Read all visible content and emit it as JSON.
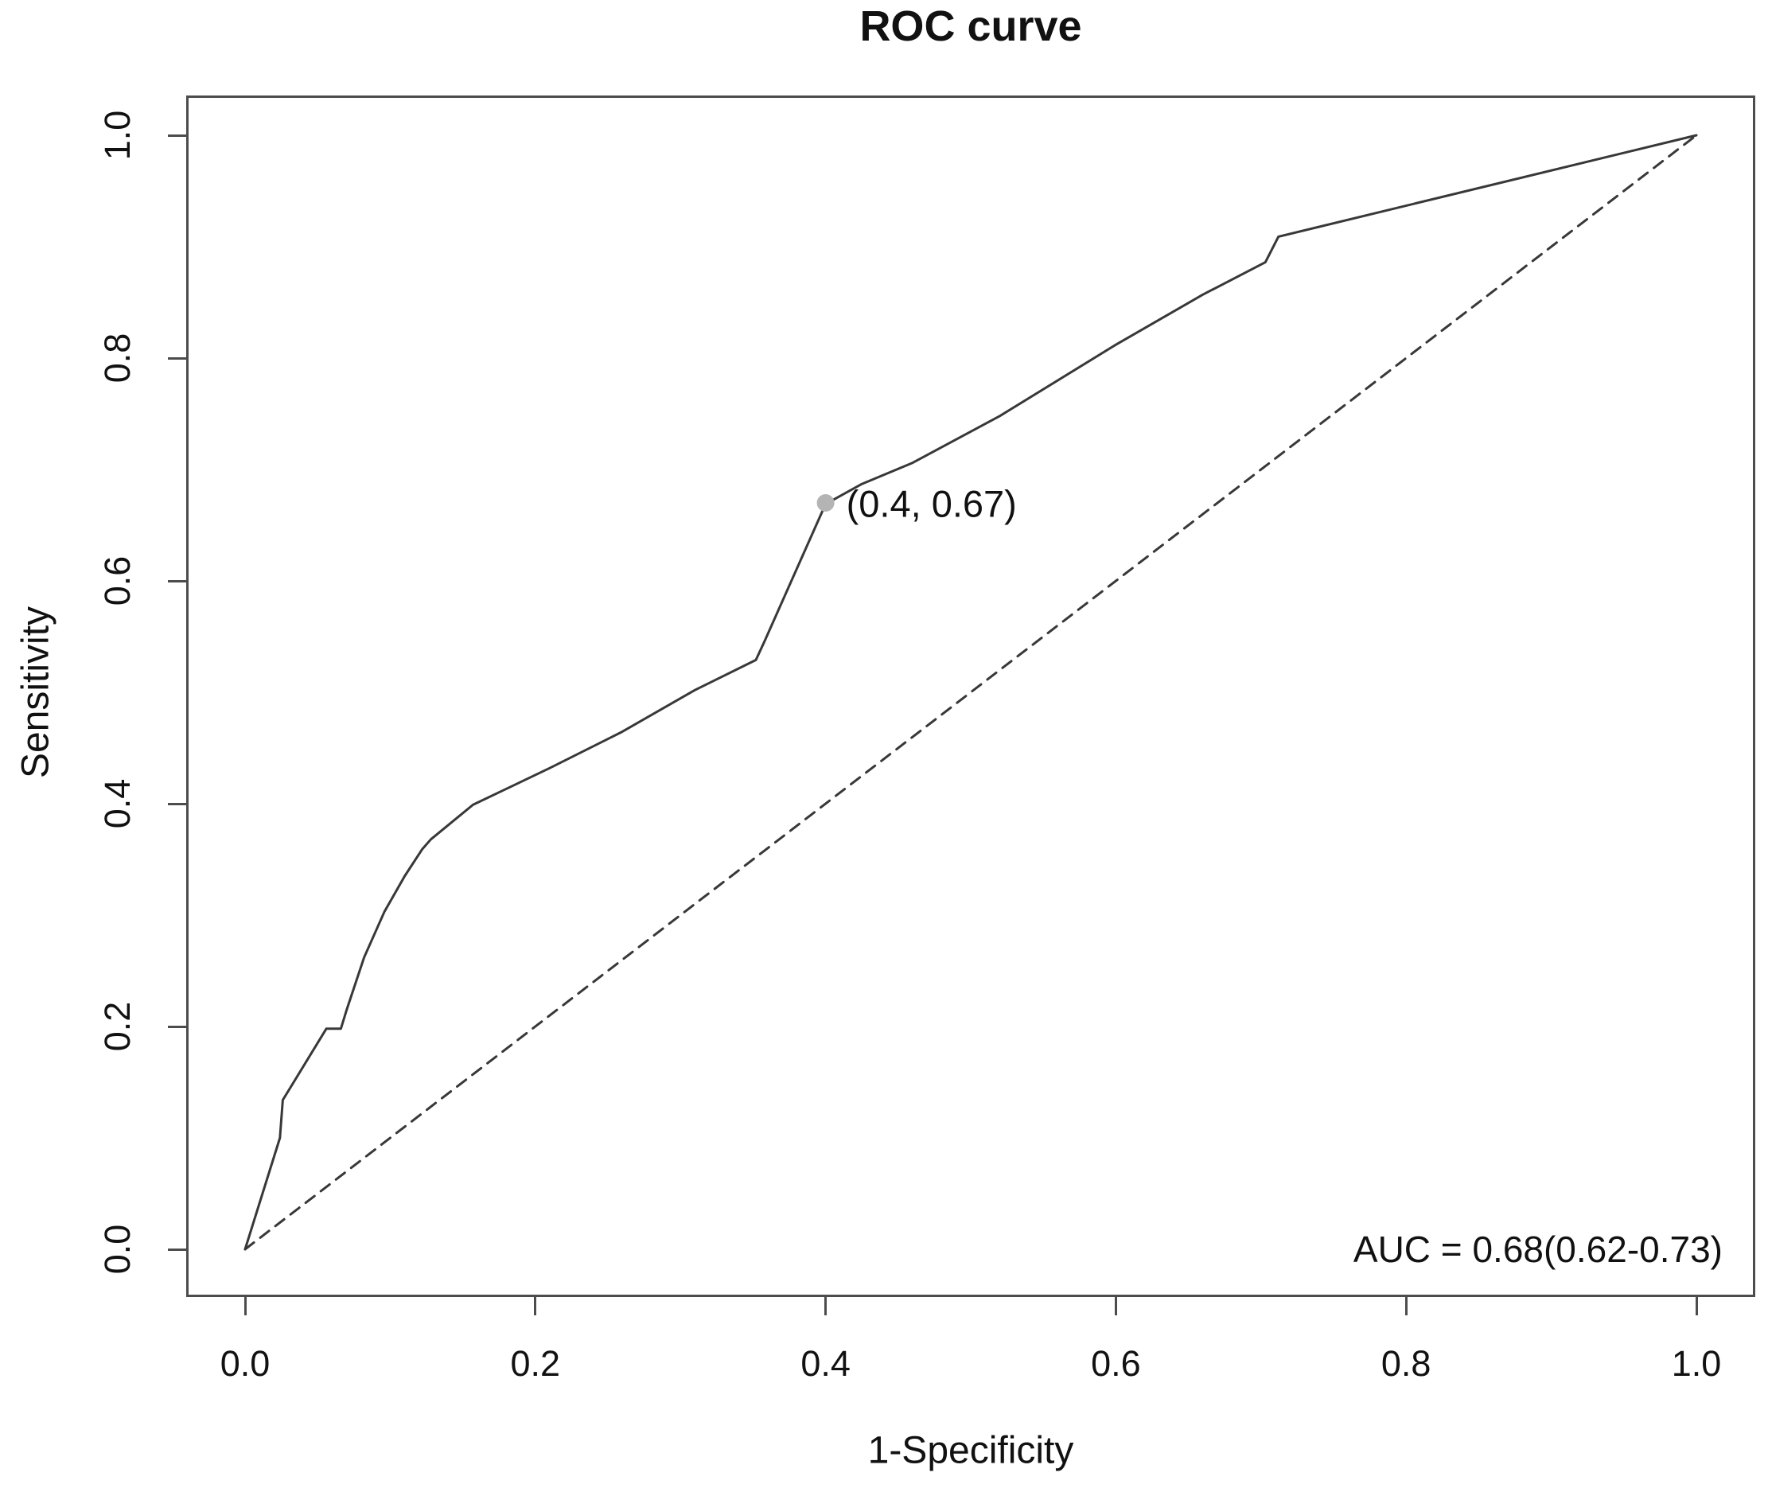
{
  "figure": {
    "title": "ROC curve",
    "x_axis_label": "1-Specificity",
    "y_axis_label": "Sensitivity",
    "auc_text": "AUC = 0.68(0.62-0.73)",
    "point_label": "(0.4, 0.67)"
  },
  "colors": {
    "curve": "#383838",
    "diagonal": "#383838",
    "frame": "#4c4c4c",
    "marked_point": "#b4b4b4",
    "text": "#111111",
    "background": "#ffffff"
  },
  "chart_data": {
    "type": "line",
    "title": "ROC curve",
    "xlabel": "1-Specificity",
    "ylabel": "Sensitivity",
    "xlim": [
      0,
      1
    ],
    "ylim": [
      0,
      1
    ],
    "grid": false,
    "legend_position": "none",
    "xticks": [
      0.0,
      0.2,
      0.4,
      0.6,
      0.8,
      1.0
    ],
    "xtick_labels": [
      "0.0",
      "0.2",
      "0.4",
      "0.6",
      "0.8",
      "1.0"
    ],
    "yticks": [
      0.0,
      0.2,
      0.4,
      0.6,
      0.8,
      1.0
    ],
    "ytick_labels": [
      "0.0",
      "0.2",
      "0.4",
      "0.6",
      "0.8",
      "1.0"
    ],
    "series": [
      {
        "name": "ROC curve",
        "style": "solid",
        "points": [
          [
            0.0,
            0.0
          ],
          [
            0.024,
            0.1
          ],
          [
            0.026,
            0.134
          ],
          [
            0.056,
            0.198
          ],
          [
            0.066,
            0.198
          ],
          [
            0.07,
            0.215
          ],
          [
            0.082,
            0.262
          ],
          [
            0.096,
            0.303
          ],
          [
            0.11,
            0.335
          ],
          [
            0.122,
            0.359
          ],
          [
            0.128,
            0.368
          ],
          [
            0.157,
            0.399
          ],
          [
            0.21,
            0.432
          ],
          [
            0.259,
            0.464
          ],
          [
            0.31,
            0.502
          ],
          [
            0.352,
            0.529
          ],
          [
            0.358,
            0.546
          ],
          [
            0.4,
            0.669
          ],
          [
            0.425,
            0.687
          ],
          [
            0.46,
            0.706
          ],
          [
            0.52,
            0.748
          ],
          [
            0.6,
            0.812
          ],
          [
            0.66,
            0.857
          ],
          [
            0.703,
            0.886
          ],
          [
            0.712,
            0.909
          ],
          [
            1.0,
            1.0
          ]
        ]
      },
      {
        "name": "chance diagonal",
        "style": "dashed",
        "points": [
          [
            0.0,
            0.0
          ],
          [
            1.0,
            1.0
          ]
        ]
      }
    ],
    "marked_point": {
      "x": 0.4,
      "y": 0.67,
      "label": "(0.4, 0.67)"
    },
    "annotations": [
      {
        "text": "AUC = 0.68(0.62-0.73)",
        "position": "bottom-right"
      },
      {
        "text": "(0.4, 0.67)",
        "position": "at-marked-point"
      }
    ]
  }
}
